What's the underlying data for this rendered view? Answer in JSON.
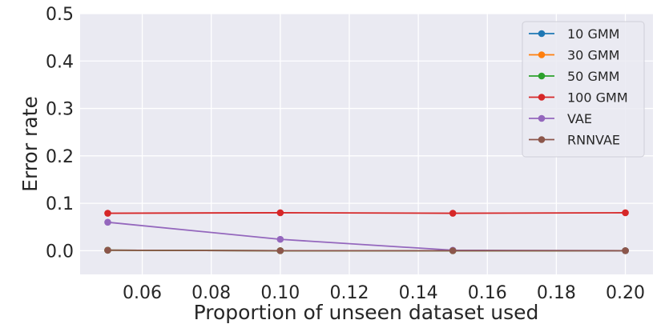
{
  "chart_data": {
    "type": "line",
    "title": "",
    "xlabel": "Proportion of unseen dataset used",
    "ylabel": "Error rate",
    "x": [
      0.05,
      0.1,
      0.15,
      0.2
    ],
    "xlim": [
      0.042,
      0.208
    ],
    "ylim": [
      -0.05,
      0.5
    ],
    "xticks": [
      0.06,
      0.08,
      0.1,
      0.12,
      0.14,
      0.16,
      0.18,
      0.2
    ],
    "xtick_labels": [
      "0.06",
      "0.08",
      "0.10",
      "0.12",
      "0.14",
      "0.16",
      "0.18",
      "0.20"
    ],
    "yticks": [
      0.0,
      0.1,
      0.2,
      0.3,
      0.4,
      0.5
    ],
    "ytick_labels": [
      "0.0",
      "0.1",
      "0.2",
      "0.3",
      "0.4",
      "0.5"
    ],
    "grid": true,
    "legend_position": "top-right",
    "series": [
      {
        "name": "10 GMM",
        "color": "#1f77b4",
        "values": [
          0.001,
          0.0,
          0.0,
          0.0
        ]
      },
      {
        "name": "30 GMM",
        "color": "#ff7f0e",
        "values": [
          0.001,
          0.0,
          0.0,
          0.0
        ]
      },
      {
        "name": "50 GMM",
        "color": "#2ca02c",
        "values": [
          0.001,
          0.0,
          0.0,
          0.0
        ]
      },
      {
        "name": "100 GMM",
        "color": "#d62728",
        "values": [
          0.079,
          0.08,
          0.079,
          0.08
        ]
      },
      {
        "name": "VAE",
        "color": "#9467bd",
        "values": [
          0.06,
          0.024,
          0.001,
          0.0
        ]
      },
      {
        "name": "RNNVAE",
        "color": "#8c564b",
        "values": [
          0.001,
          0.0,
          0.0,
          0.0
        ]
      }
    ]
  }
}
